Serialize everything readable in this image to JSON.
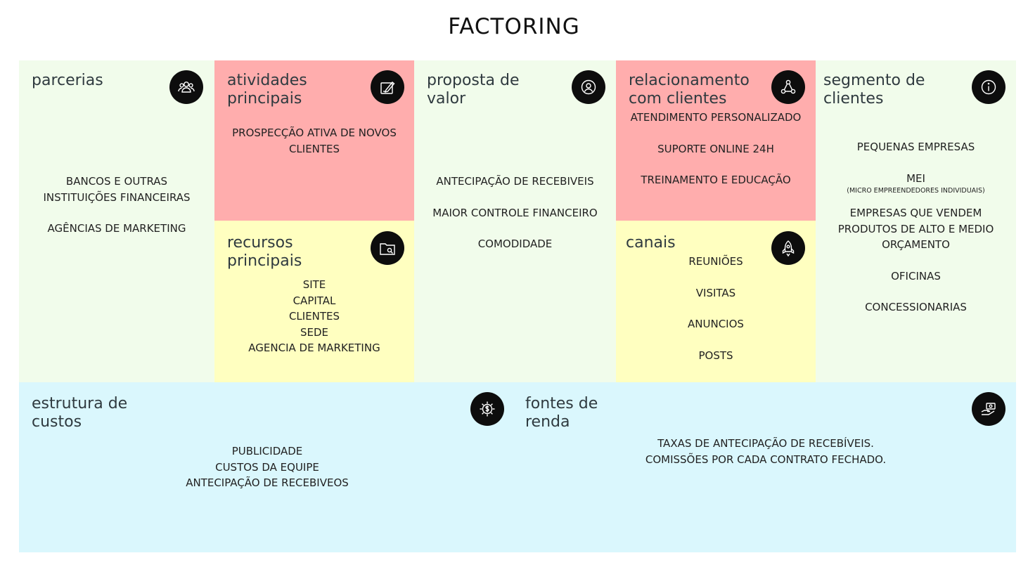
{
  "title": "FACTORING",
  "colors": {
    "green": "#f1fceb",
    "pink": "#ffadad",
    "yellow": "#ffffc0",
    "blue": "#daf7fd",
    "icon_bg": "#0d0d0d"
  },
  "blocks": {
    "parcerias": {
      "title": "parcerias",
      "icon": "people-group-icon",
      "items": [
        "BANCOS E OUTRAS",
        "INSTITUIÇÕES FINANCEIRAS",
        "AGÊNCIAS DE MARKETING"
      ]
    },
    "atividades": {
      "title": "atividades\nprincipais",
      "icon": "edit-pen-icon",
      "items": [
        "PROSPECÇÃO ATIVA DE NOVOS",
        "CLIENTES"
      ]
    },
    "recursos": {
      "title": "recursos\nprincipais",
      "icon": "folder-search-icon",
      "items": [
        "SITE",
        "CAPITAL",
        "CLIENTES",
        "SEDE",
        "AGENCIA DE MARKETING"
      ]
    },
    "proposta": {
      "title": "proposta de\nvalor",
      "icon": "target-user-icon",
      "items": [
        "ANTECIPAÇÃO DE RECEBIVEIS",
        "MAIOR CONTROLE FINANCEIRO",
        "COMODIDADE"
      ]
    },
    "relacionamento": {
      "title": "relacionamento\ncom clientes",
      "icon": "network-nodes-icon",
      "items": [
        "ATENDIMENTO PERSONALIZADO",
        "SUPORTE ONLINE 24H",
        "TREINAMENTO E EDUCAÇÃO"
      ]
    },
    "canais": {
      "title": "canais",
      "icon": "rocket-icon",
      "items": [
        "REUNIÕES",
        "VISITAS",
        "ANUNCIOS",
        "POSTS"
      ]
    },
    "segmento": {
      "title": "segmento de\nclientes",
      "icon": "info-icon",
      "items": [
        "PEQUENAS EMPRESAS",
        "MEI",
        "(MICRO EMPREENDEDORES INDIVIDUAIS)",
        "EMPRESAS QUE VENDEM",
        "PRODUTOS DE ALTO E MEDIO",
        "ORÇAMENTO",
        "OFICINAS",
        "CONCESSIONARIAS"
      ]
    },
    "custos": {
      "title": "estrutura de\ncustos",
      "icon": "dollar-gear-icon",
      "items": [
        "PUBLICIDADE",
        "CUSTOS DA EQUIPE",
        "ANTECIPAÇÃO DE RECEBIVEOS"
      ]
    },
    "renda": {
      "title": "fontes de\nrenda",
      "icon": "hand-money-icon",
      "items": [
        "TAXAS DE ANTECIPAÇÃO DE RECEBÍVEIS.",
        "COMISSÕES POR CADA CONTRATO FECHADO."
      ]
    }
  }
}
